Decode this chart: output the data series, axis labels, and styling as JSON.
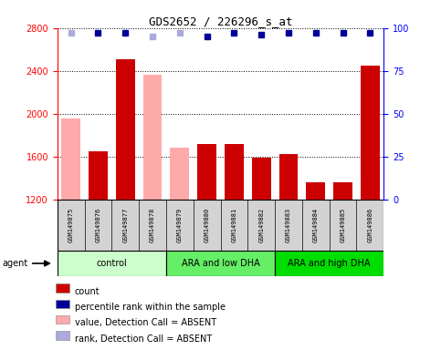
{
  "title": "GDS2652 / 226296_s_at",
  "samples": [
    "GSM149875",
    "GSM149876",
    "GSM149877",
    "GSM149878",
    "GSM149879",
    "GSM149880",
    "GSM149881",
    "GSM149882",
    "GSM149883",
    "GSM149884",
    "GSM149885",
    "GSM149886"
  ],
  "count_values": [
    null,
    1650,
    2510,
    null,
    null,
    1720,
    1720,
    1590,
    1620,
    1360,
    1360,
    2450
  ],
  "absent_values": [
    1960,
    null,
    null,
    2360,
    1680,
    null,
    null,
    null,
    null,
    null,
    null,
    null
  ],
  "percentile_rank": [
    97,
    97,
    97,
    95,
    97,
    95,
    97,
    96,
    97,
    97,
    97,
    97
  ],
  "absent_rank_vals": [
    97,
    null,
    null,
    95,
    97,
    null,
    null,
    null,
    null,
    null,
    null,
    null
  ],
  "is_absent": [
    true,
    false,
    false,
    true,
    true,
    false,
    false,
    false,
    false,
    false,
    false,
    false
  ],
  "groups": [
    {
      "label": "control",
      "start": 0,
      "end": 4,
      "color": "#ccffcc"
    },
    {
      "label": "ARA and low DHA",
      "start": 4,
      "end": 8,
      "color": "#44dd44"
    },
    {
      "label": "ARA and high DHA",
      "start": 8,
      "end": 12,
      "color": "#00ee00"
    }
  ],
  "ylim": [
    1200,
    2800
  ],
  "yticks": [
    1200,
    1600,
    2000,
    2400,
    2800
  ],
  "right_yticks": [
    0,
    25,
    50,
    75,
    100
  ],
  "right_ylim": [
    0,
    100
  ],
  "bar_color_count": "#cc0000",
  "bar_color_absent": "#ffaaaa",
  "dot_color_present": "#000099",
  "dot_color_absent": "#aaaadd",
  "legend_items": [
    {
      "color": "#cc0000",
      "label": "count",
      "square": true
    },
    {
      "color": "#000099",
      "label": "percentile rank within the sample",
      "square": true
    },
    {
      "color": "#ffaaaa",
      "label": "value, Detection Call = ABSENT",
      "square": true
    },
    {
      "color": "#aaaadd",
      "label": "rank, Detection Call = ABSENT",
      "square": true
    }
  ],
  "left_axis_color": "red",
  "right_axis_color": "blue",
  "title_fontsize": 9,
  "tick_fontsize": 7,
  "sample_fontsize": 5,
  "group_fontsize": 7,
  "legend_fontsize": 7
}
